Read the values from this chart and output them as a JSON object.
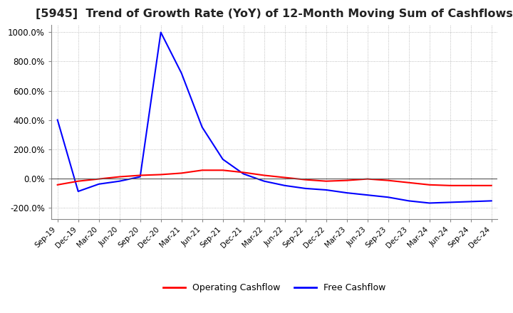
{
  "title": "[5945]  Trend of Growth Rate (YoY) of 12-Month Moving Sum of Cashflows",
  "title_fontsize": 11.5,
  "ylim": [
    -280,
    1050
  ],
  "yticks": [
    -200,
    0,
    200,
    400,
    600,
    800,
    1000
  ],
  "ytick_labels": [
    "-200.0%",
    "0.0%",
    "200.0%",
    "400.0%",
    "600.0%",
    "800.0%",
    "1000.0%"
  ],
  "legend_labels": [
    "Operating Cashflow",
    "Free Cashflow"
  ],
  "legend_colors": [
    "red",
    "blue"
  ],
  "background_color": "#ffffff",
  "grid_color": "#aaaaaa",
  "x_labels": [
    "Sep-19",
    "Dec-19",
    "Mar-20",
    "Jun-20",
    "Sep-20",
    "Dec-20",
    "Mar-21",
    "Jun-21",
    "Sep-21",
    "Dec-21",
    "Mar-22",
    "Jun-22",
    "Sep-22",
    "Dec-22",
    "Mar-23",
    "Jun-23",
    "Sep-23",
    "Dec-23",
    "Mar-24",
    "Jun-24",
    "Sep-24",
    "Dec-24"
  ],
  "operating_cashflow": [
    -45,
    -20,
    -5,
    10,
    20,
    25,
    35,
    55,
    55,
    40,
    20,
    5,
    -10,
    -20,
    -15,
    -5,
    -15,
    -30,
    -45,
    -50,
    -50,
    -50
  ],
  "free_cashflow": [
    400,
    -90,
    -40,
    -20,
    10,
    1000,
    720,
    350,
    130,
    30,
    -20,
    -50,
    -70,
    -80,
    -100,
    -115,
    -130,
    -155,
    -170,
    -165,
    -160,
    -155
  ]
}
